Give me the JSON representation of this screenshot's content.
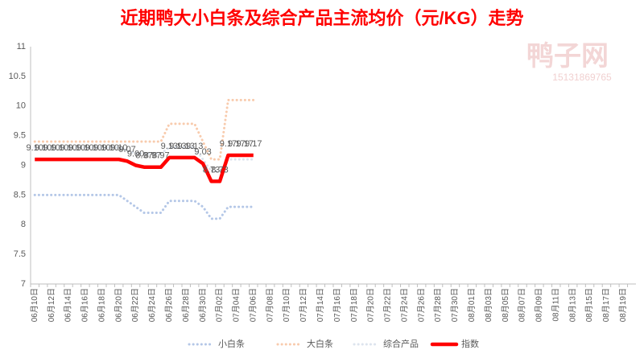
{
  "chart_data": {
    "type": "line",
    "title": "近期鸭大小白条及综合产品主流均价（元/KG）走势",
    "watermark": [
      "鸭子网",
      "15131869765"
    ],
    "categories": [
      "06月10日",
      null,
      "06月12日",
      null,
      "06月14日",
      null,
      "06月16日",
      null,
      "06月18日",
      null,
      "06月20日",
      null,
      "06月22日",
      null,
      "06月24日",
      null,
      "06月26日",
      null,
      "06月28日",
      null,
      "06月30日",
      null,
      "07月02日",
      null,
      "07月04日",
      null,
      "07月06日",
      null,
      "07月08日",
      null,
      "07月10日",
      null,
      "07月12日",
      null,
      "07月14日",
      null,
      "07月16日",
      null,
      "07月18日",
      null,
      "07月20日",
      null,
      "07月22日",
      null,
      "07月24日",
      null,
      "07月26日",
      null,
      "07月28日",
      null,
      "07月30日",
      null,
      "08月01日",
      null,
      "08月03日",
      null,
      "08月05日",
      null,
      "08月07日",
      null,
      "08月09日",
      null,
      "08月11日",
      null,
      "08月13日",
      null,
      "08月15日",
      null,
      "08月17日",
      null,
      "08月19日",
      null
    ],
    "series": [
      {
        "name": "小白条",
        "color": "#b4c7e7",
        "style": "dotted",
        "values": [
          8.5,
          8.5,
          8.5,
          8.5,
          8.5,
          8.5,
          8.5,
          8.5,
          8.5,
          8.5,
          8.5,
          8.4,
          8.3,
          8.2,
          8.2,
          8.2,
          8.4,
          8.4,
          8.4,
          8.4,
          8.3,
          8.1,
          8.1,
          8.3,
          8.3,
          8.3,
          8.3,
          null,
          null,
          null,
          null,
          null,
          null,
          null,
          null,
          null,
          null,
          null,
          null,
          null,
          null,
          null,
          null,
          null,
          null,
          null,
          null,
          null,
          null,
          null,
          null,
          null,
          null,
          null,
          null,
          null,
          null,
          null,
          null,
          null,
          null,
          null,
          null,
          null,
          null,
          null,
          null,
          null,
          null,
          null,
          null,
          null
        ]
      },
      {
        "name": "大白条",
        "color": "#f8cbad",
        "style": "dotted",
        "values": [
          9.4,
          9.4,
          9.4,
          9.4,
          9.4,
          9.4,
          9.4,
          9.4,
          9.4,
          9.4,
          9.4,
          9.4,
          9.4,
          9.4,
          9.4,
          9.4,
          9.7,
          9.7,
          9.7,
          9.7,
          9.4,
          9.1,
          9.1,
          10.1,
          10.1,
          10.1,
          10.1,
          null,
          null,
          null,
          null,
          null,
          null,
          null,
          null,
          null,
          null,
          null,
          null,
          null,
          null,
          null,
          null,
          null,
          null,
          null,
          null,
          null,
          null,
          null,
          null,
          null,
          null,
          null,
          null,
          null,
          null,
          null,
          null,
          null,
          null,
          null,
          null,
          null,
          null,
          null,
          null,
          null,
          null,
          null,
          null,
          null
        ]
      },
      {
        "name": "综合产品",
        "color": "#dde4ee",
        "style": "dotted",
        "values": [
          9.3,
          9.3,
          9.3,
          9.3,
          9.3,
          9.3,
          9.3,
          9.3,
          9.3,
          9.3,
          9.3,
          9.25,
          9.2,
          9.2,
          9.2,
          9.2,
          9.3,
          9.3,
          9.3,
          9.3,
          9.1,
          8.9,
          8.9,
          9.1,
          9.1,
          9.1,
          9.1,
          null,
          null,
          null,
          null,
          null,
          null,
          null,
          null,
          null,
          null,
          null,
          null,
          null,
          null,
          null,
          null,
          null,
          null,
          null,
          null,
          null,
          null,
          null,
          null,
          null,
          null,
          null,
          null,
          null,
          null,
          null,
          null,
          null,
          null,
          null,
          null,
          null,
          null,
          null,
          null,
          null,
          null,
          null,
          null,
          null
        ]
      },
      {
        "name": "指数",
        "color": "#ff0000",
        "style": "solid",
        "values": [
          9.1,
          9.1,
          9.1,
          9.1,
          9.1,
          9.1,
          9.1,
          9.1,
          9.1,
          9.1,
          9.1,
          9.07,
          9,
          8.97,
          8.97,
          8.97,
          9.13,
          9.13,
          9.13,
          9.13,
          9.03,
          8.73,
          8.73,
          9.17,
          9.17,
          9.17,
          9.17,
          null,
          null,
          null,
          null,
          null,
          null,
          null,
          null,
          null,
          null,
          null,
          null,
          null,
          null,
          null,
          null,
          null,
          null,
          null,
          null,
          null,
          null,
          null,
          null,
          null,
          null,
          null,
          null,
          null,
          null,
          null,
          null,
          null,
          null,
          null,
          null,
          null,
          null,
          null,
          null,
          null,
          null,
          null,
          null,
          null
        ],
        "value_labels": [
          "9.10",
          "9.10",
          "9.10",
          "9.10",
          "9.10",
          "9.10",
          "9.10",
          "9.10",
          "9.10",
          "9.10",
          "9.10",
          "9.07",
          "9.00",
          "8.97",
          "8.97",
          "8.97",
          "9.13",
          "9.13",
          "9.13",
          "9.13",
          "9.03",
          "8.73",
          "8.73",
          "9.17",
          "9.17",
          "9.17",
          "9.17",
          null,
          null,
          null,
          null,
          null,
          null,
          null,
          null,
          null,
          null,
          null,
          null,
          null,
          null,
          null,
          null,
          null,
          null,
          null,
          null,
          null,
          null,
          null,
          null,
          null,
          null,
          null,
          null,
          null,
          null,
          null,
          null,
          null,
          null,
          null,
          null,
          null,
          null,
          null,
          null,
          null,
          null,
          null,
          null,
          null
        ]
      }
    ],
    "ylim": [
      7,
      11
    ],
    "yticks": [
      7,
      7.5,
      8,
      8.5,
      9,
      9.5,
      10,
      10.5,
      11
    ],
    "grid": false,
    "legend": "bottom"
  }
}
